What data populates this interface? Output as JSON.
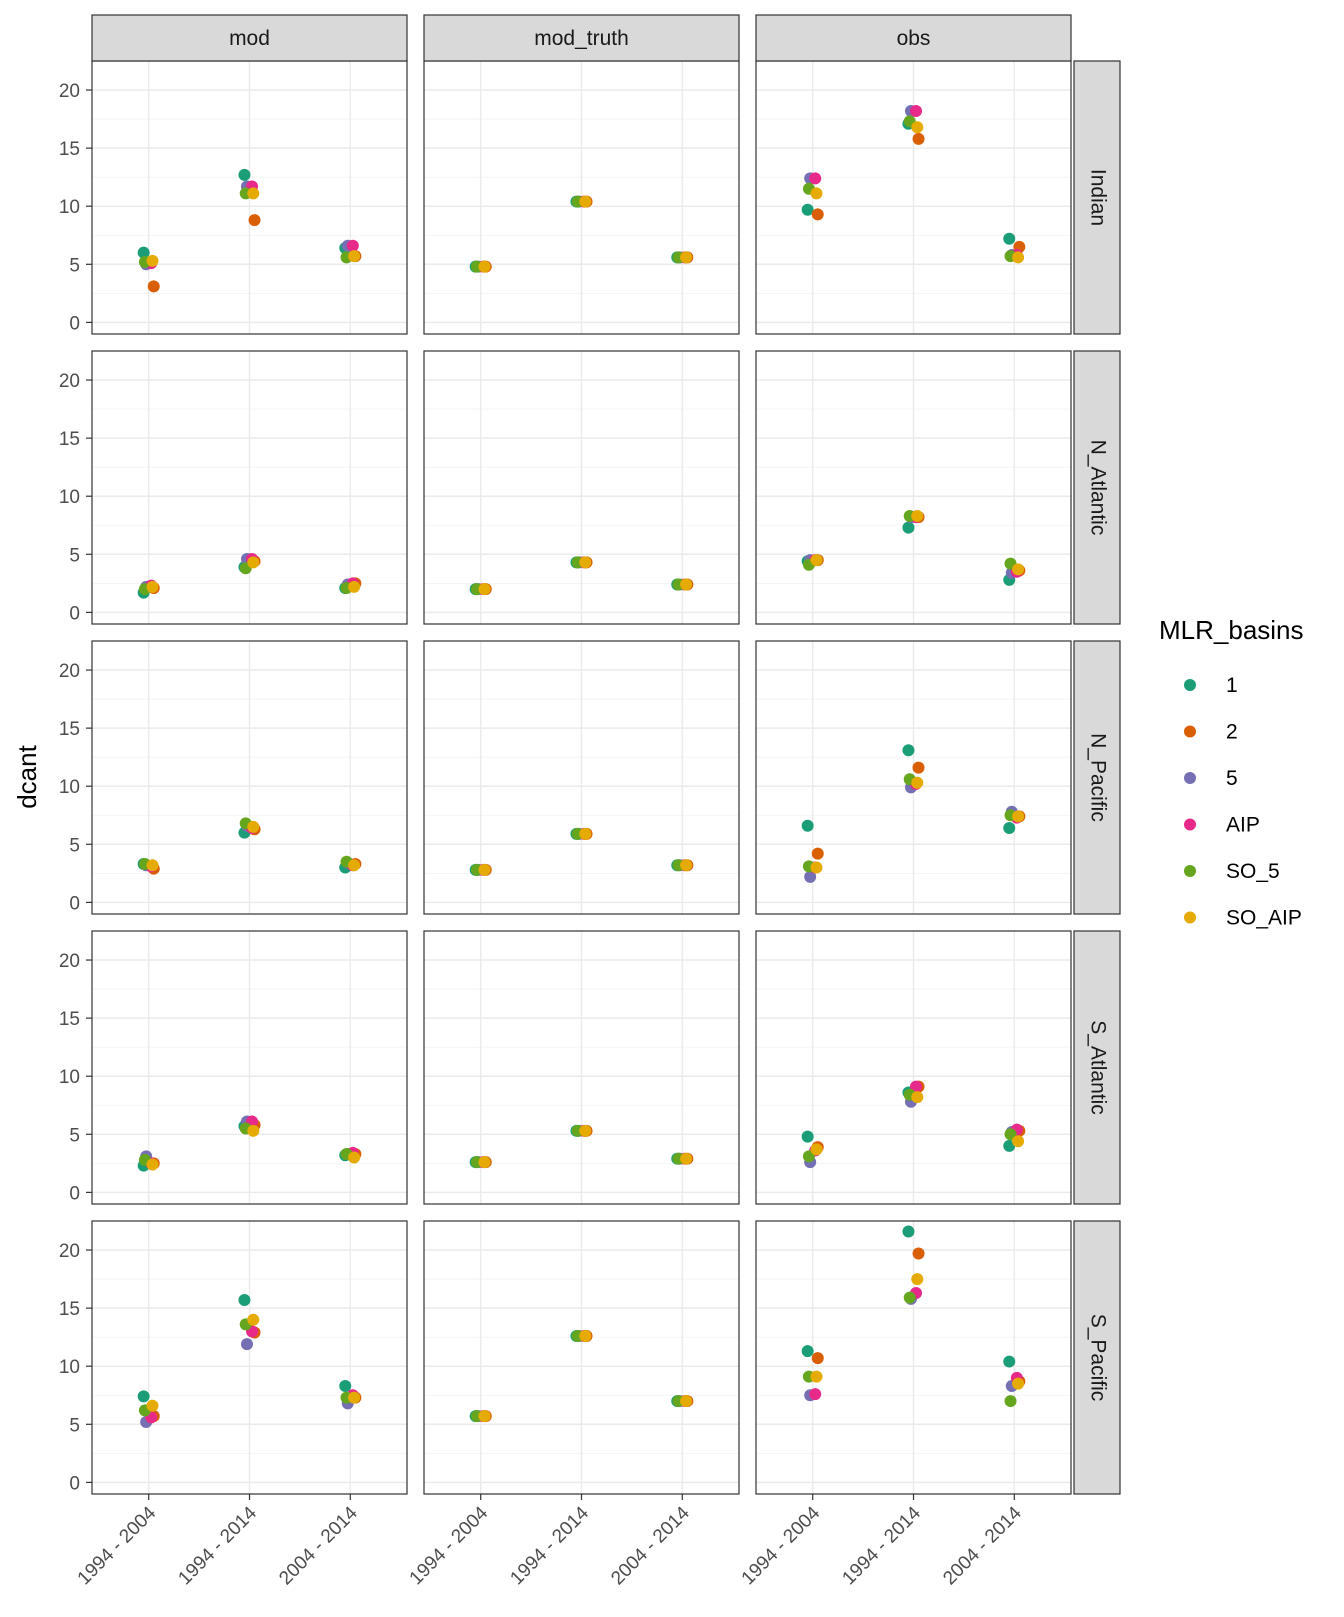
{
  "chart_data": {
    "type": "scatter",
    "ylabel": "dcant",
    "xlabel": "",
    "ylim": [
      -1,
      22.5
    ],
    "y_ticks": [
      "0",
      "5",
      "10",
      "15",
      "20"
    ],
    "categories": [
      "1994 - 2004",
      "1994 - 2014",
      "2004 - 2014"
    ],
    "columns": [
      "mod",
      "mod_truth",
      "obs"
    ],
    "rows": [
      "Indian",
      "N_Atlantic",
      "N_Pacific",
      "S_Atlantic",
      "S_Pacific"
    ],
    "grid": "on",
    "legend": {
      "title": "MLR_basins",
      "position": "right",
      "entries": [
        {
          "label": "1",
          "color": "#1b9e77"
        },
        {
          "label": "2",
          "color": "#d95f02"
        },
        {
          "label": "5",
          "color": "#7570b3"
        },
        {
          "label": "AIP",
          "color": "#e7298a"
        },
        {
          "label": "SO_5",
          "color": "#66a61e"
        },
        {
          "label": "SO_AIP",
          "color": "#e6ab02"
        }
      ]
    },
    "panels": [
      {
        "column": "mod",
        "row": "Indian",
        "points": [
          {
            "series": "1",
            "values": [
              6.0,
              12.7,
              6.4
            ]
          },
          {
            "series": "2",
            "values": [
              3.1,
              8.8,
              5.7
            ]
          },
          {
            "series": "5",
            "values": [
              5.0,
              11.7,
              6.6
            ]
          },
          {
            "series": "AIP",
            "values": [
              5.1,
              11.7,
              6.6
            ]
          },
          {
            "series": "SO_5",
            "values": [
              5.2,
              11.1,
              5.6
            ]
          },
          {
            "series": "SO_AIP",
            "values": [
              5.3,
              11.1,
              5.7
            ]
          }
        ]
      },
      {
        "column": "mod_truth",
        "row": "Indian",
        "points": [
          {
            "series": "1",
            "values": [
              4.8,
              10.4,
              5.6
            ]
          },
          {
            "series": "2",
            "values": [
              4.8,
              10.4,
              5.6
            ]
          },
          {
            "series": "5",
            "values": [
              4.8,
              10.4,
              5.6
            ]
          },
          {
            "series": "AIP",
            "values": [
              4.8,
              10.4,
              5.6
            ]
          },
          {
            "series": "SO_5",
            "values": [
              4.8,
              10.4,
              5.6
            ]
          },
          {
            "series": "SO_AIP",
            "values": [
              4.8,
              10.4,
              5.6
            ]
          }
        ]
      },
      {
        "column": "obs",
        "row": "Indian",
        "points": [
          {
            "series": "1",
            "values": [
              9.7,
              17.1,
              7.2
            ]
          },
          {
            "series": "2",
            "values": [
              9.3,
              15.8,
              6.5
            ]
          },
          {
            "series": "5",
            "values": [
              12.4,
              18.2,
              5.8
            ]
          },
          {
            "series": "AIP",
            "values": [
              12.4,
              18.2,
              5.8
            ]
          },
          {
            "series": "SO_5",
            "values": [
              11.5,
              17.3,
              5.7
            ]
          },
          {
            "series": "SO_AIP",
            "values": [
              11.1,
              16.8,
              5.6
            ]
          }
        ]
      },
      {
        "column": "mod",
        "row": "N_Atlantic",
        "points": [
          {
            "series": "1",
            "values": [
              1.7,
              3.9,
              2.1
            ]
          },
          {
            "series": "2",
            "values": [
              2.1,
              4.4,
              2.5
            ]
          },
          {
            "series": "5",
            "values": [
              2.2,
              4.6,
              2.4
            ]
          },
          {
            "series": "AIP",
            "values": [
              2.3,
              4.6,
              2.5
            ]
          },
          {
            "series": "SO_5",
            "values": [
              2.0,
              3.8,
              2.1
            ]
          },
          {
            "series": "SO_AIP",
            "values": [
              2.2,
              4.3,
              2.2
            ]
          }
        ]
      },
      {
        "column": "mod_truth",
        "row": "N_Atlantic",
        "points": [
          {
            "series": "1",
            "values": [
              2.0,
              4.3,
              2.4
            ]
          },
          {
            "series": "2",
            "values": [
              2.0,
              4.3,
              2.4
            ]
          },
          {
            "series": "5",
            "values": [
              2.0,
              4.3,
              2.4
            ]
          },
          {
            "series": "AIP",
            "values": [
              2.0,
              4.3,
              2.4
            ]
          },
          {
            "series": "SO_5",
            "values": [
              2.0,
              4.3,
              2.4
            ]
          },
          {
            "series": "SO_AIP",
            "values": [
              2.0,
              4.3,
              2.4
            ]
          }
        ]
      },
      {
        "column": "obs",
        "row": "N_Atlantic",
        "points": [
          {
            "series": "1",
            "values": [
              4.4,
              7.3,
              2.8
            ]
          },
          {
            "series": "2",
            "values": [
              4.5,
              8.2,
              3.6
            ]
          },
          {
            "series": "5",
            "values": [
              4.5,
              8.2,
              3.4
            ]
          },
          {
            "series": "AIP",
            "values": [
              4.5,
              8.2,
              3.5
            ]
          },
          {
            "series": "SO_5",
            "values": [
              4.1,
              8.3,
              4.2
            ]
          },
          {
            "series": "SO_AIP",
            "values": [
              4.5,
              8.3,
              3.7
            ]
          }
        ]
      },
      {
        "column": "mod",
        "row": "N_Pacific",
        "points": [
          {
            "series": "1",
            "values": [
              3.3,
              6.0,
              3.0
            ]
          },
          {
            "series": "2",
            "values": [
              2.9,
              6.3,
              3.3
            ]
          },
          {
            "series": "5",
            "values": [
              3.2,
              6.6,
              3.4
            ]
          },
          {
            "series": "AIP",
            "values": [
              3.1,
              6.4,
              3.2
            ]
          },
          {
            "series": "SO_5",
            "values": [
              3.3,
              6.8,
              3.5
            ]
          },
          {
            "series": "SO_AIP",
            "values": [
              3.2,
              6.5,
              3.2
            ]
          }
        ]
      },
      {
        "column": "mod_truth",
        "row": "N_Pacific",
        "points": [
          {
            "series": "1",
            "values": [
              2.8,
              5.9,
              3.2
            ]
          },
          {
            "series": "2",
            "values": [
              2.8,
              5.9,
              3.2
            ]
          },
          {
            "series": "5",
            "values": [
              2.8,
              5.9,
              3.2
            ]
          },
          {
            "series": "AIP",
            "values": [
              2.8,
              5.9,
              3.2
            ]
          },
          {
            "series": "SO_5",
            "values": [
              2.8,
              5.9,
              3.2
            ]
          },
          {
            "series": "SO_AIP",
            "values": [
              2.8,
              5.9,
              3.2
            ]
          }
        ]
      },
      {
        "column": "obs",
        "row": "N_Pacific",
        "points": [
          {
            "series": "1",
            "values": [
              6.6,
              13.1,
              6.4
            ]
          },
          {
            "series": "2",
            "values": [
              4.2,
              11.6,
              7.4
            ]
          },
          {
            "series": "5",
            "values": [
              2.2,
              9.9,
              7.8
            ]
          },
          {
            "series": "AIP",
            "values": [
              3.0,
              10.2,
              7.3
            ]
          },
          {
            "series": "SO_5",
            "values": [
              3.1,
              10.6,
              7.5
            ]
          },
          {
            "series": "SO_AIP",
            "values": [
              3.0,
              10.3,
              7.4
            ]
          }
        ]
      },
      {
        "column": "mod",
        "row": "S_Atlantic",
        "points": [
          {
            "series": "1",
            "values": [
              2.3,
              5.7,
              3.2
            ]
          },
          {
            "series": "2",
            "values": [
              2.5,
              5.8,
              3.3
            ]
          },
          {
            "series": "5",
            "values": [
              3.1,
              6.1,
              3.3
            ]
          },
          {
            "series": "AIP",
            "values": [
              2.5,
              6.1,
              3.4
            ]
          },
          {
            "series": "SO_5",
            "values": [
              2.8,
              5.5,
              3.3
            ]
          },
          {
            "series": "SO_AIP",
            "values": [
              2.4,
              5.3,
              3.0
            ]
          }
        ]
      },
      {
        "column": "mod_truth",
        "row": "S_Atlantic",
        "points": [
          {
            "series": "1",
            "values": [
              2.6,
              5.3,
              2.9
            ]
          },
          {
            "series": "2",
            "values": [
              2.6,
              5.3,
              2.9
            ]
          },
          {
            "series": "5",
            "values": [
              2.6,
              5.3,
              2.9
            ]
          },
          {
            "series": "AIP",
            "values": [
              2.6,
              5.3,
              2.9
            ]
          },
          {
            "series": "SO_5",
            "values": [
              2.6,
              5.3,
              2.9
            ]
          },
          {
            "series": "SO_AIP",
            "values": [
              2.6,
              5.3,
              2.9
            ]
          }
        ]
      },
      {
        "column": "obs",
        "row": "S_Atlantic",
        "points": [
          {
            "series": "1",
            "values": [
              4.8,
              8.6,
              4.0
            ]
          },
          {
            "series": "2",
            "values": [
              3.9,
              9.1,
              5.3
            ]
          },
          {
            "series": "5",
            "values": [
              2.6,
              7.8,
              5.2
            ]
          },
          {
            "series": "AIP",
            "values": [
              3.6,
              9.1,
              5.4
            ]
          },
          {
            "series": "SO_5",
            "values": [
              3.1,
              8.4,
              5.0
            ]
          },
          {
            "series": "SO_AIP",
            "values": [
              3.7,
              8.2,
              4.4
            ]
          }
        ]
      },
      {
        "column": "mod",
        "row": "S_Pacific",
        "points": [
          {
            "series": "1",
            "values": [
              7.4,
              15.7,
              8.3
            ]
          },
          {
            "series": "2",
            "values": [
              5.7,
              12.9,
              7.3
            ]
          },
          {
            "series": "5",
            "values": [
              5.2,
              11.9,
              6.8
            ]
          },
          {
            "series": "AIP",
            "values": [
              5.6,
              13.0,
              7.5
            ]
          },
          {
            "series": "SO_5",
            "values": [
              6.2,
              13.6,
              7.3
            ]
          },
          {
            "series": "SO_AIP",
            "values": [
              6.6,
              14.0,
              7.3
            ]
          }
        ]
      },
      {
        "column": "mod_truth",
        "row": "S_Pacific",
        "points": [
          {
            "series": "1",
            "values": [
              5.7,
              12.6,
              7.0
            ]
          },
          {
            "series": "2",
            "values": [
              5.7,
              12.6,
              7.0
            ]
          },
          {
            "series": "5",
            "values": [
              5.7,
              12.6,
              7.0
            ]
          },
          {
            "series": "AIP",
            "values": [
              5.7,
              12.6,
              7.0
            ]
          },
          {
            "series": "SO_5",
            "values": [
              5.7,
              12.6,
              7.0
            ]
          },
          {
            "series": "SO_AIP",
            "values": [
              5.7,
              12.6,
              7.0
            ]
          }
        ]
      },
      {
        "column": "obs",
        "row": "S_Pacific",
        "points": [
          {
            "series": "1",
            "values": [
              11.3,
              21.6,
              10.4
            ]
          },
          {
            "series": "2",
            "values": [
              10.7,
              19.7,
              8.7
            ]
          },
          {
            "series": "5",
            "values": [
              7.5,
              15.8,
              8.3
            ]
          },
          {
            "series": "AIP",
            "values": [
              7.6,
              16.3,
              9.0
            ]
          },
          {
            "series": "SO_5",
            "values": [
              9.1,
              15.9,
              7.0
            ]
          },
          {
            "series": "SO_AIP",
            "values": [
              9.1,
              17.5,
              8.5
            ]
          }
        ]
      }
    ]
  }
}
